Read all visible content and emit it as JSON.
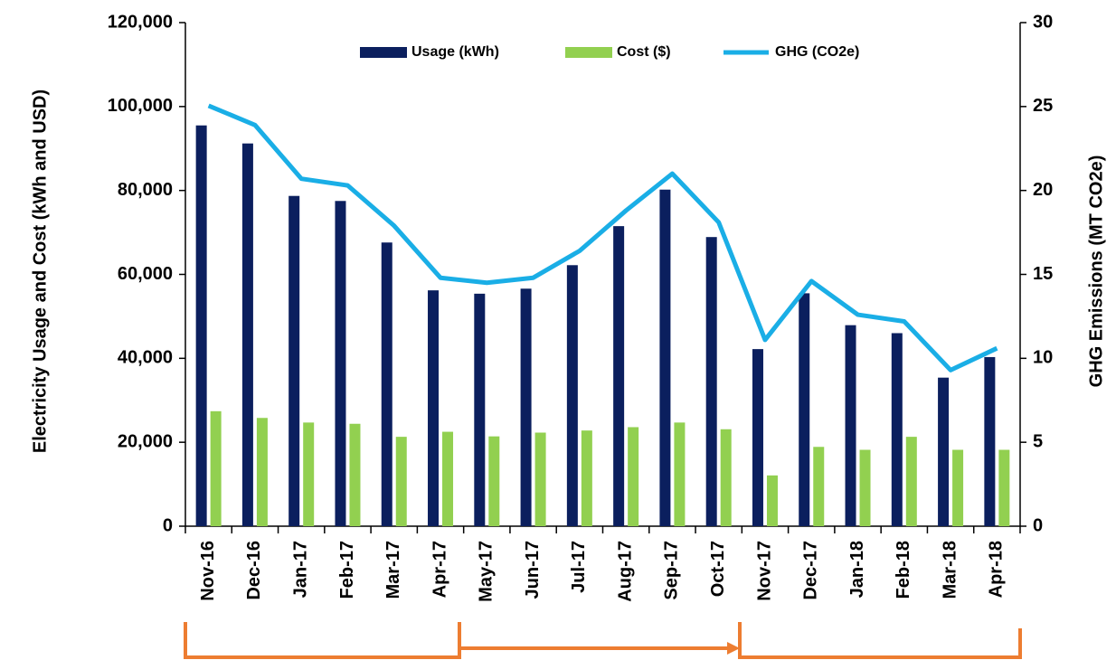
{
  "chart_data": {
    "type": "bar_line",
    "categories": [
      "Nov-16",
      "Dec-16",
      "Jan-17",
      "Feb-17",
      "Mar-17",
      "Apr-17",
      "May-17",
      "Jun-17",
      "Jul-17",
      "Aug-17",
      "Sep-17",
      "Oct-17",
      "Nov-17",
      "Dec-17",
      "Jan-18",
      "Feb-18",
      "Mar-18",
      "Apr-18"
    ],
    "series": [
      {
        "name": "Usage (kWh)",
        "type": "bar",
        "color": "#0b1f5e",
        "values": [
          95500,
          91200,
          78700,
          77500,
          67600,
          56200,
          55400,
          56600,
          62200,
          71500,
          80200,
          68900,
          42200,
          55500,
          47900,
          46000,
          35400,
          40300
        ]
      },
      {
        "name": "Cost ($)",
        "type": "bar",
        "color": "#92d050",
        "values": [
          27400,
          25800,
          24700,
          24400,
          21300,
          22500,
          21400,
          22300,
          22800,
          23600,
          24700,
          23100,
          12100,
          18900,
          18200,
          21300,
          18200,
          18200
        ]
      },
      {
        "name": "GHG (CO2e)",
        "type": "line",
        "axis": "y2",
        "color": "#1aaee6",
        "values": [
          25.05,
          23.9,
          20.7,
          20.3,
          17.9,
          14.8,
          14.5,
          14.8,
          16.4,
          18.8,
          21.0,
          18.1,
          11.1,
          14.6,
          12.6,
          12.2,
          9.3,
          10.6
        ]
      }
    ],
    "y_label": "Electricity Usage and Cost (kWh and USD)",
    "y2_label": "GHG Emissions (MT CO2e)",
    "ylim": [
      0,
      120000
    ],
    "yticks": [
      0,
      {
        "value": 20000,
        "label": "20,000"
      },
      {
        "value": 40000,
        "label": "40,000"
      },
      {
        "value": 60000,
        "label": "60,000"
      },
      {
        "value": 80000,
        "label": "80,000"
      },
      {
        "value": 100000,
        "label": "100,000"
      },
      {
        "value": 120000,
        "label": "120,000"
      }
    ],
    "y2lim": [
      0,
      30
    ],
    "y2ticks": [
      0,
      5,
      10,
      15,
      20,
      25,
      30
    ],
    "grid": false,
    "legend": "top"
  }
}
